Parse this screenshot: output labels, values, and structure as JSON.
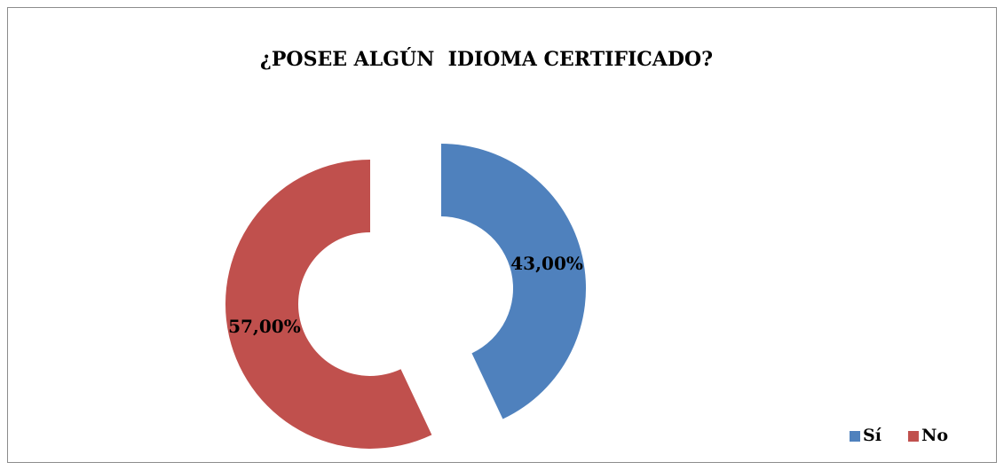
{
  "chart_data": {
    "type": "donut",
    "title": "¿POSEE ALGÚN  IDIOMA CERTIFICADO?",
    "categories": [
      "Sí",
      "No"
    ],
    "values": [
      43,
      57
    ],
    "value_labels": [
      "43,00%",
      "57,00%"
    ],
    "colors": [
      "#4f81bd",
      "#c0504d"
    ],
    "legend": "bottom-right"
  }
}
